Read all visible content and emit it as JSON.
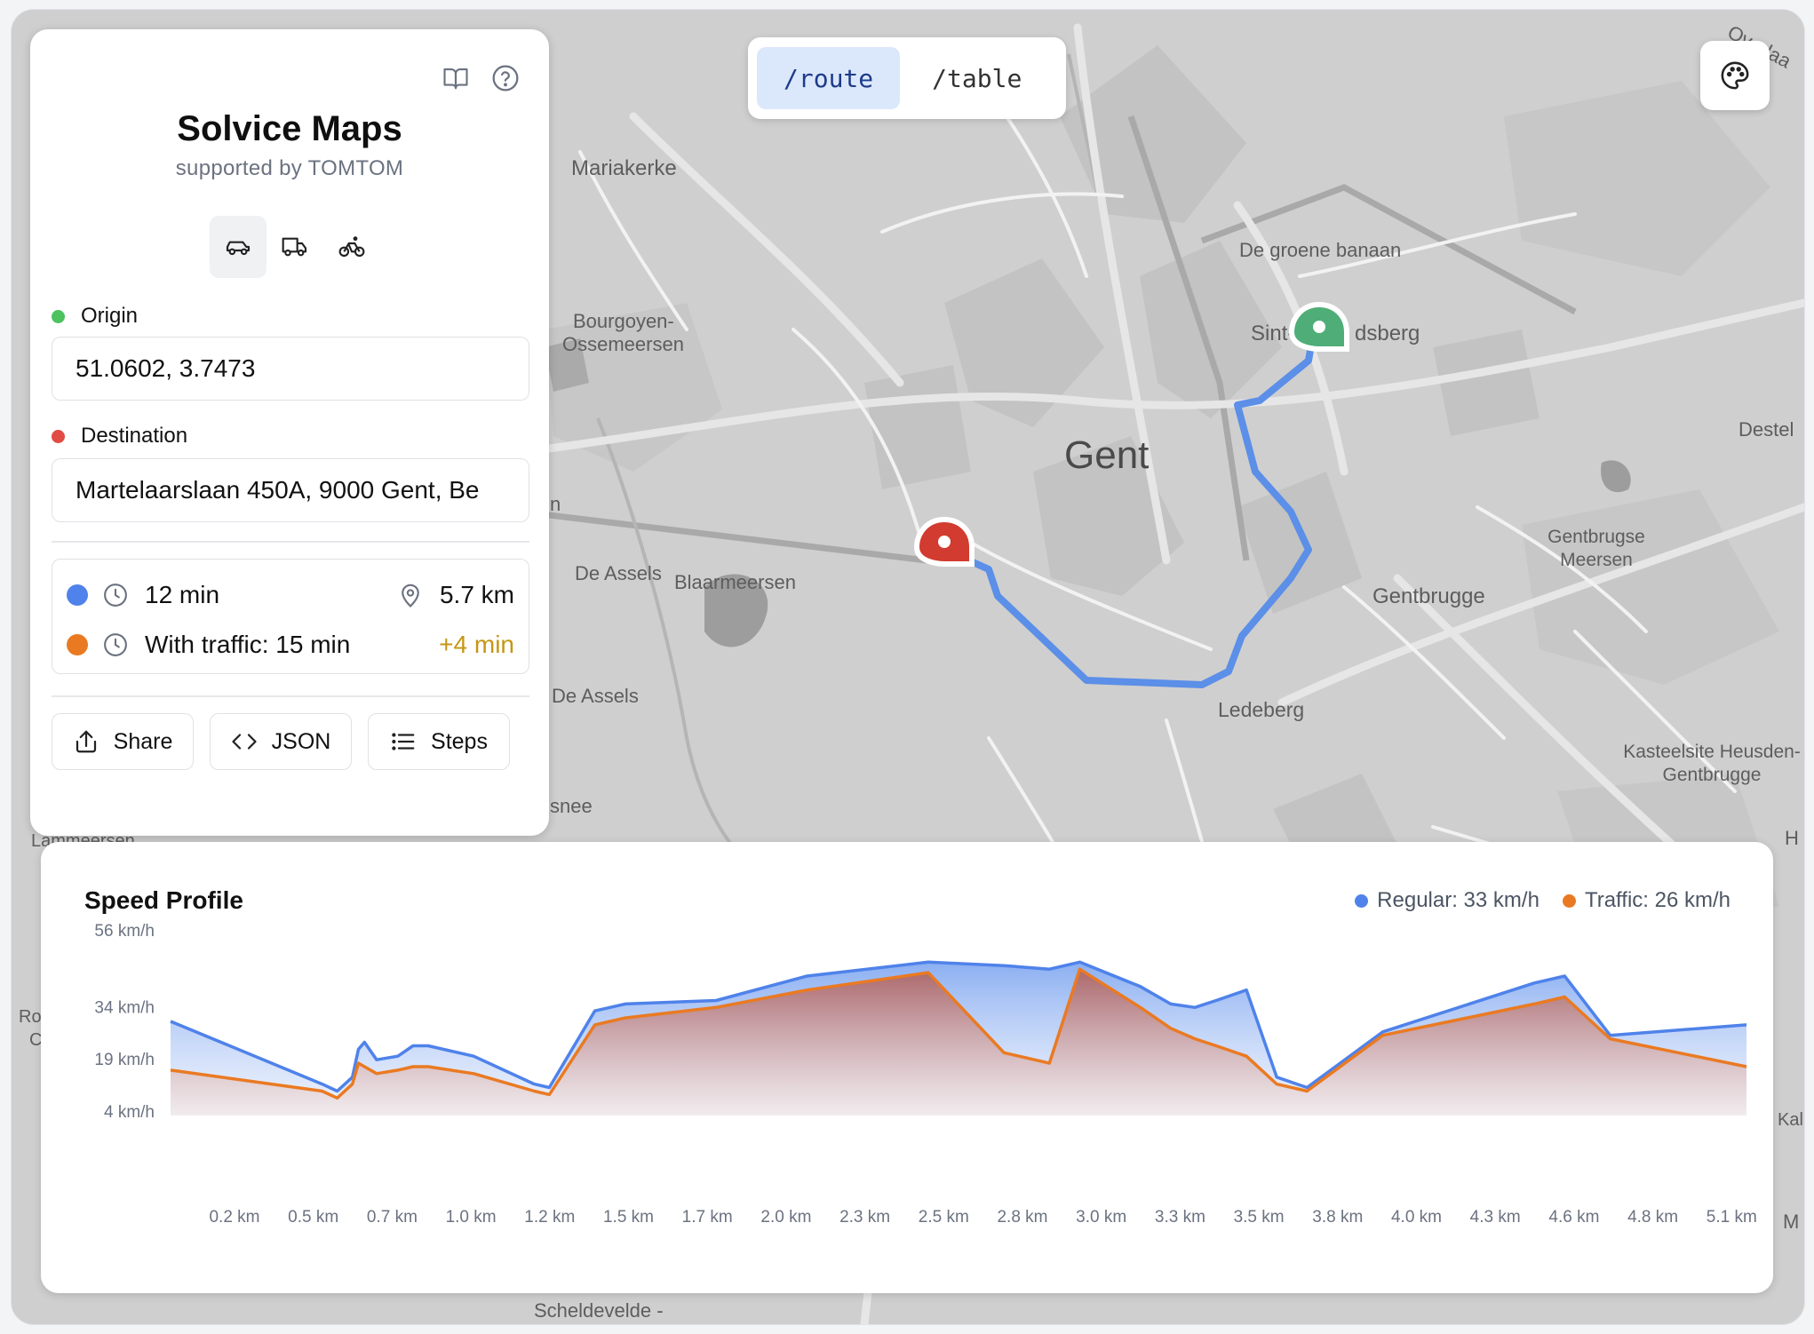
{
  "app": {
    "title": "Solvice Maps",
    "subtitle": "supported by TOMTOM"
  },
  "nav": {
    "route": "/route",
    "table": "/table",
    "active": "route"
  },
  "icons": {
    "book": "book-open-icon",
    "help": "help-circle-icon",
    "palette": "palette-icon",
    "car": "car-icon",
    "truck": "truck-icon",
    "bike": "bicycle-icon"
  },
  "vehicle_mode": "car",
  "origin": {
    "label": "Origin",
    "value": "51.0602, 3.7473",
    "color": "#4cc35f"
  },
  "destination": {
    "label": "Destination",
    "value": "Martelaarslaan 450A, 9000 Gent, Be",
    "color": "#e04b43"
  },
  "stats": {
    "duration": "12 min",
    "distance": "5.7 km",
    "traffic": "With traffic: 15 min",
    "delay": "+4 min",
    "regular_color": "#4f82ea",
    "traffic_color": "#ea7a22",
    "delay_color": "#c59612"
  },
  "actions": {
    "share": "Share",
    "json": "JSON",
    "steps": "Steps"
  },
  "map_labels": [
    {
      "text": "Mariakerke"
    },
    {
      "text": "De groene banaan"
    },
    {
      "text": "Sint-"
    },
    {
      "text": "dsberg"
    },
    {
      "text": "Bourgoyen-"
    },
    {
      "text": "Ossemeersen"
    },
    {
      "text": "Gent"
    },
    {
      "text": "Destel"
    },
    {
      "text": "De Assels"
    },
    {
      "text": "Blaarmeersen"
    },
    {
      "text": "Gentbrugse"
    },
    {
      "text": "Meersen"
    },
    {
      "text": "Gentbrugge"
    },
    {
      "text": "De Assels"
    },
    {
      "text": "Ledeberg"
    },
    {
      "text": "Kasteelsite Heusden-"
    },
    {
      "text": "Gentbrugge"
    },
    {
      "text": "snee"
    },
    {
      "text": "Scheldevelde -"
    },
    {
      "text": "Overlaa"
    },
    {
      "text": "H"
    },
    {
      "text": "Kal"
    },
    {
      "text": "M"
    },
    {
      "text": "Ro"
    },
    {
      "text": "C"
    },
    {
      "text": "n"
    },
    {
      "text": "Lammeersen"
    }
  ],
  "chart": {
    "title": "Speed Profile",
    "legend_regular": "Regular: 33 km/h",
    "legend_traffic": "Traffic: 26 km/h"
  },
  "chart_data": {
    "type": "area",
    "title": "Speed Profile",
    "xlabel": "",
    "ylabel": "",
    "y_ticks": [
      4,
      19,
      34,
      56
    ],
    "y_tick_labels": [
      "4 km/h",
      "19 km/h",
      "34 km/h",
      "56 km/h"
    ],
    "x_ticks": [
      0.2,
      0.5,
      0.7,
      1.0,
      1.2,
      1.5,
      1.7,
      2.0,
      2.3,
      2.5,
      2.8,
      3.0,
      3.3,
      3.5,
      3.8,
      4.0,
      4.3,
      4.6,
      4.8,
      5.1
    ],
    "x_tick_labels": [
      "0.2 km",
      "0.5 km",
      "0.7 km",
      "1.0 km",
      "1.2 km",
      "1.5 km",
      "1.7 km",
      "2.0 km",
      "2.3 km",
      "2.5 km",
      "2.8 km",
      "3.0 km",
      "3.3 km",
      "3.5 km",
      "3.8 km",
      "4.0 km",
      "4.3 km",
      "4.6 km",
      "4.8 km",
      "5.1 km"
    ],
    "xlim": [
      0.0,
      5.2
    ],
    "ylim": [
      4,
      56
    ],
    "series": [
      {
        "name": "Regular: 33 km/h",
        "color": "#4f82ea",
        "x": [
          0.0,
          0.5,
          0.55,
          0.6,
          0.62,
          0.64,
          0.68,
          0.75,
          0.8,
          0.85,
          1.0,
          1.2,
          1.25,
          1.4,
          1.5,
          1.8,
          2.1,
          2.5,
          2.75,
          2.9,
          3.0,
          3.2,
          3.3,
          3.38,
          3.45,
          3.55,
          3.65,
          3.75,
          4.0,
          4.5,
          4.6,
          4.75,
          5.2
        ],
        "values": [
          30,
          12,
          10,
          14,
          22,
          24,
          19,
          20,
          23,
          23,
          20,
          12,
          11,
          33,
          35,
          36,
          43,
          47,
          46,
          45,
          47,
          40,
          35,
          34,
          36,
          39,
          14,
          11,
          27,
          41,
          43,
          26,
          29
        ]
      },
      {
        "name": "Traffic: 26 km/h",
        "color": "#ea7a22",
        "x": [
          0.0,
          0.5,
          0.55,
          0.6,
          0.62,
          0.64,
          0.68,
          0.75,
          0.8,
          0.85,
          1.0,
          1.2,
          1.25,
          1.4,
          1.5,
          1.8,
          2.1,
          2.5,
          2.75,
          2.9,
          3.0,
          3.2,
          3.3,
          3.38,
          3.45,
          3.55,
          3.65,
          3.75,
          4.0,
          4.5,
          4.6,
          4.75,
          5.2
        ],
        "values": [
          16,
          10,
          8,
          12,
          18,
          17,
          15,
          16,
          17,
          17,
          15,
          10,
          9,
          29,
          31,
          34,
          39,
          44,
          21,
          18,
          45,
          34,
          28,
          25,
          23,
          20,
          12,
          10,
          26,
          35,
          37,
          25,
          17
        ]
      }
    ],
    "grid": false,
    "legend_position": "top-right"
  }
}
